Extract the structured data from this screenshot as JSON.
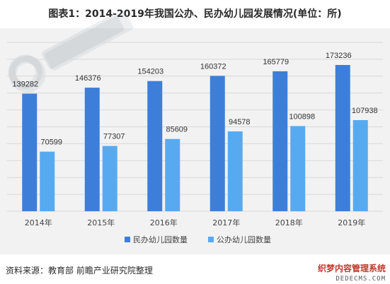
{
  "title": "图表1：2014-2019年我国公办、民办幼儿园发展情况(单位：所)",
  "source": "资料来源：教育部 前瞻产业研究院整理",
  "watermark": {
    "text": "织梦内容管理系统",
    "url": "DEDECMS.COM"
  },
  "colors": {
    "series1": "#3d7fd8",
    "series2": "#58aaf0",
    "background": "#f2f2f2",
    "grid": "#d8d8d8"
  },
  "chart_data": {
    "type": "bar",
    "categories": [
      "2014年",
      "2015年",
      "2016年",
      "2017年",
      "2018年",
      "2019年"
    ],
    "series": [
      {
        "name": "民办幼儿园数量",
        "values": [
          139282,
          146376,
          154203,
          160372,
          165779,
          173236
        ]
      },
      {
        "name": "公办幼儿园数量",
        "values": [
          70599,
          77307,
          85609,
          94578,
          100898,
          107938
        ]
      }
    ],
    "ylim": [
      0,
      200000
    ],
    "grid": true,
    "legend": "bottom",
    "data_labels": true
  }
}
